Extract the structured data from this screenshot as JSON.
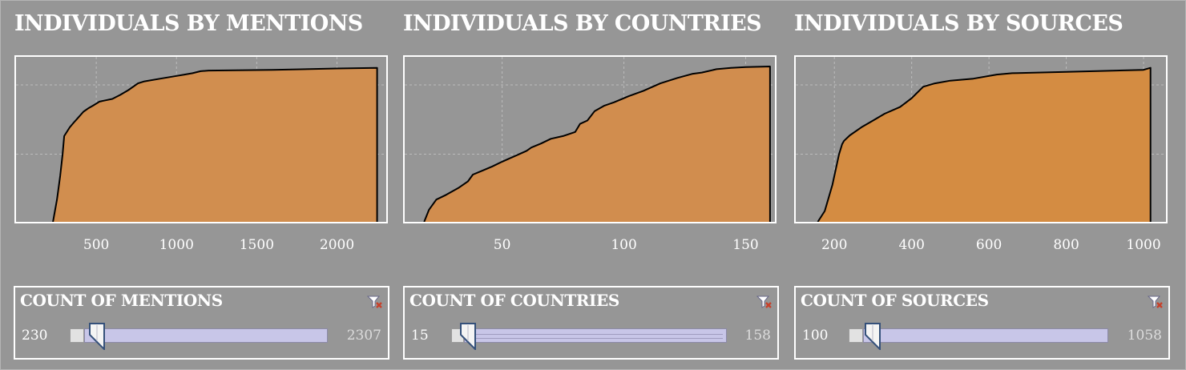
{
  "chart_data": [
    {
      "type": "area",
      "title": "INDIVIDUALS BY MENTIONS",
      "xlim": [
        0,
        2307
      ],
      "x_ticks": [
        "500",
        "1000",
        "1500",
        "2000"
      ],
      "tick_values": [
        500,
        1000,
        1500,
        2000
      ],
      "ylim": [
        0,
        230
      ],
      "grid": true,
      "x": [
        230,
        255,
        262,
        275,
        290,
        300,
        335,
        360,
        390,
        420,
        450,
        480,
        520,
        560,
        600,
        650,
        700,
        760,
        800,
        900,
        1000,
        1050,
        1100,
        1150,
        1200,
        1600,
        2000,
        2250
      ],
      "y": [
        0,
        33,
        45,
        68,
        100,
        127,
        140,
        147,
        155,
        163,
        168,
        172,
        178,
        180,
        182,
        188,
        195,
        205,
        208,
        212,
        216,
        218,
        220,
        223,
        224,
        225,
        227,
        228
      ]
    },
    {
      "type": "area",
      "title": "INDIVIDUALS BY COUNTRIES",
      "xlim": [
        10,
        162
      ],
      "x_ticks": [
        "50",
        "100",
        "150"
      ],
      "tick_values": [
        50,
        100,
        150
      ],
      "ylim": [
        0,
        230
      ],
      "grid": true,
      "x": [
        18,
        20,
        23,
        27,
        32,
        36,
        38,
        42,
        46,
        50,
        55,
        60,
        62,
        66,
        70,
        75,
        80,
        82,
        85,
        88,
        92,
        96,
        102,
        108,
        115,
        122,
        128,
        132,
        138,
        144,
        150,
        160
      ],
      "y": [
        0,
        18,
        33,
        40,
        50,
        60,
        70,
        76,
        82,
        89,
        97,
        105,
        110,
        116,
        123,
        127,
        133,
        145,
        150,
        164,
        172,
        177,
        186,
        194,
        205,
        213,
        219,
        221,
        226,
        228,
        229,
        230
      ]
    },
    {
      "type": "area",
      "title": "INDIVIDUALS BY SOURCES",
      "xlim": [
        100,
        1058
      ],
      "x_ticks": [
        "200",
        "400",
        "600",
        "800",
        "1000"
      ],
      "tick_values": [
        200,
        400,
        600,
        800,
        1000
      ],
      "ylim": [
        0,
        230
      ],
      "grid": true,
      "x": [
        157,
        175,
        195,
        212,
        220,
        225,
        240,
        270,
        300,
        330,
        370,
        400,
        430,
        460,
        500,
        560,
        620,
        660,
        800,
        1000,
        1018
      ],
      "y": [
        0,
        16,
        55,
        100,
        115,
        120,
        128,
        140,
        150,
        160,
        170,
        183,
        200,
        205,
        209,
        212,
        218,
        220,
        222,
        225,
        228
      ]
    }
  ],
  "filters": [
    {
      "title": "COUNT OF MENTIONS",
      "min": "230",
      "max": "2307",
      "handle_value": 0.07,
      "track_style": "bar"
    },
    {
      "title": "COUNT OF COUNTRIES",
      "min": "15",
      "max": "158",
      "handle_value": 0.03,
      "track_style": "rail"
    },
    {
      "title": "COUNT OF SOURCES",
      "min": "100",
      "max": "1058",
      "handle_value": 0.06,
      "track_style": "bar"
    }
  ],
  "colors": {
    "fill_0": "#d18e4f",
    "fill_1": "#d18d4e",
    "fill_2": "#d48c42",
    "grid": "#bcbcbc",
    "outline": "#000000",
    "clear_icon_accent": "#c8402a"
  },
  "icons": {
    "clear_filter": "filter-clear-icon",
    "slider_handle": "slider-handle-icon"
  }
}
